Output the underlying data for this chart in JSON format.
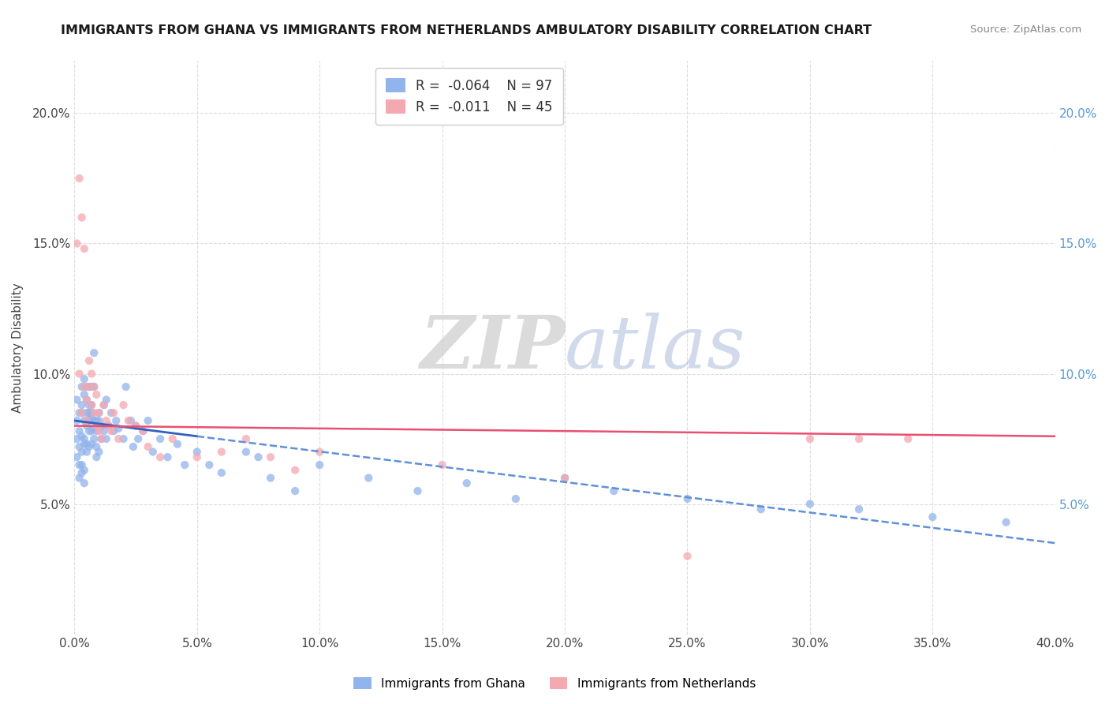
{
  "title": "IMMIGRANTS FROM GHANA VS IMMIGRANTS FROM NETHERLANDS AMBULATORY DISABILITY CORRELATION CHART",
  "source": "Source: ZipAtlas.com",
  "ylabel": "Ambulatory Disability",
  "xlim": [
    0.0,
    0.4
  ],
  "ylim": [
    0.0,
    0.22
  ],
  "legend_r1": "R =  -0.064",
  "legend_n1": "N = 97",
  "legend_r2": "R =  -0.011",
  "legend_n2": "N = 45",
  "color_ghana": "#92B4EC",
  "color_netherlands": "#F4A8B0",
  "trendline_ghana_solid_color": "#3060C0",
  "trendline_ghana_dashed_color": "#6090D8",
  "trendline_netherlands_color": "#E85070",
  "background_color": "#FFFFFF",
  "grid_color": "#DDDDDD",
  "watermark_zip": "ZIP",
  "watermark_atlas": "atlas",
  "ghana_x": [
    0.001,
    0.001,
    0.001,
    0.001,
    0.002,
    0.002,
    0.002,
    0.002,
    0.002,
    0.003,
    0.003,
    0.003,
    0.003,
    0.003,
    0.003,
    0.003,
    0.004,
    0.004,
    0.004,
    0.004,
    0.004,
    0.004,
    0.004,
    0.005,
    0.005,
    0.005,
    0.005,
    0.005,
    0.005,
    0.006,
    0.006,
    0.006,
    0.006,
    0.006,
    0.006,
    0.007,
    0.007,
    0.007,
    0.007,
    0.007,
    0.007,
    0.008,
    0.008,
    0.008,
    0.008,
    0.008,
    0.009,
    0.009,
    0.009,
    0.009,
    0.01,
    0.01,
    0.01,
    0.011,
    0.011,
    0.012,
    0.012,
    0.013,
    0.013,
    0.014,
    0.015,
    0.016,
    0.017,
    0.018,
    0.02,
    0.021,
    0.023,
    0.024,
    0.025,
    0.026,
    0.028,
    0.03,
    0.032,
    0.035,
    0.038,
    0.042,
    0.045,
    0.05,
    0.055,
    0.06,
    0.07,
    0.075,
    0.08,
    0.09,
    0.1,
    0.12,
    0.14,
    0.16,
    0.18,
    0.2,
    0.22,
    0.25,
    0.28,
    0.3,
    0.32,
    0.35,
    0.38
  ],
  "ghana_y": [
    0.075,
    0.082,
    0.09,
    0.068,
    0.078,
    0.065,
    0.06,
    0.085,
    0.072,
    0.088,
    0.076,
    0.07,
    0.095,
    0.085,
    0.065,
    0.062,
    0.092,
    0.082,
    0.073,
    0.063,
    0.058,
    0.098,
    0.075,
    0.095,
    0.085,
    0.073,
    0.09,
    0.08,
    0.07,
    0.095,
    0.082,
    0.088,
    0.078,
    0.085,
    0.072,
    0.088,
    0.083,
    0.073,
    0.085,
    0.095,
    0.078,
    0.082,
    0.079,
    0.075,
    0.095,
    0.108,
    0.082,
    0.072,
    0.078,
    0.068,
    0.082,
    0.07,
    0.085,
    0.08,
    0.075,
    0.088,
    0.078,
    0.09,
    0.075,
    0.08,
    0.085,
    0.078,
    0.082,
    0.079,
    0.075,
    0.095,
    0.082,
    0.072,
    0.08,
    0.075,
    0.078,
    0.082,
    0.07,
    0.075,
    0.068,
    0.073,
    0.065,
    0.07,
    0.065,
    0.062,
    0.07,
    0.068,
    0.06,
    0.055,
    0.065,
    0.06,
    0.055,
    0.058,
    0.052,
    0.06,
    0.055,
    0.052,
    0.048,
    0.05,
    0.048,
    0.045,
    0.043
  ],
  "netherlands_x": [
    0.001,
    0.002,
    0.002,
    0.003,
    0.003,
    0.004,
    0.004,
    0.005,
    0.005,
    0.006,
    0.006,
    0.007,
    0.007,
    0.008,
    0.008,
    0.009,
    0.009,
    0.01,
    0.01,
    0.011,
    0.012,
    0.013,
    0.014,
    0.015,
    0.016,
    0.018,
    0.02,
    0.022,
    0.025,
    0.028,
    0.03,
    0.035,
    0.04,
    0.05,
    0.06,
    0.07,
    0.08,
    0.09,
    0.1,
    0.15,
    0.2,
    0.25,
    0.3,
    0.32,
    0.34
  ],
  "netherlands_y": [
    0.15,
    0.175,
    0.1,
    0.16,
    0.085,
    0.148,
    0.095,
    0.082,
    0.09,
    0.105,
    0.095,
    0.088,
    0.1,
    0.085,
    0.095,
    0.08,
    0.092,
    0.078,
    0.085,
    0.075,
    0.088,
    0.082,
    0.08,
    0.078,
    0.085,
    0.075,
    0.088,
    0.082,
    0.08,
    0.078,
    0.072,
    0.068,
    0.075,
    0.068,
    0.07,
    0.075,
    0.068,
    0.063,
    0.07,
    0.065,
    0.06,
    0.03,
    0.075,
    0.075,
    0.075
  ],
  "trendline_ghana_x0": 0.0,
  "trendline_ghana_y0": 0.082,
  "trendline_ghana_x_solid_end": 0.05,
  "trendline_ghana_y_solid_end": 0.076,
  "trendline_ghana_x1": 0.4,
  "trendline_ghana_y1": 0.035,
  "trendline_neth_x0": 0.0,
  "trendline_neth_y0": 0.08,
  "trendline_neth_x1": 0.4,
  "trendline_neth_y1": 0.076
}
